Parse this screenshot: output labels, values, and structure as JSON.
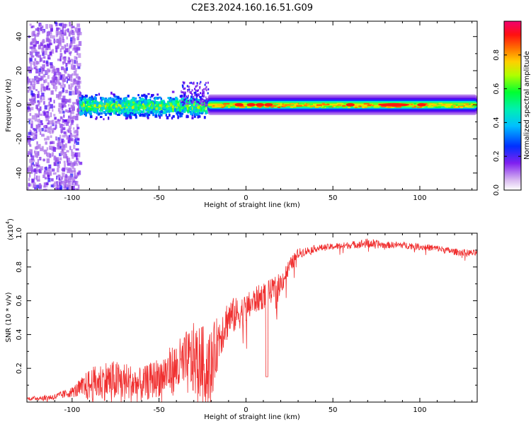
{
  "title": "C2E3.2024.160.16.51.G09",
  "chart_data": [
    {
      "type": "heatmap",
      "xlabel": "Height of straight line (km)",
      "ylabel": "Frequency (Hz)",
      "xlim": [
        -126,
        133
      ],
      "ylim": [
        -50,
        49
      ],
      "x_ticks": [
        -100,
        -50,
        0,
        50,
        100
      ],
      "y_ticks": [
        -40,
        -20,
        0,
        20,
        40
      ],
      "colorbar": {
        "label": "Normalized spectral amplitude",
        "range": [
          0,
          1
        ],
        "ticks": [
          0.0,
          0.2,
          0.4,
          0.6,
          0.8
        ],
        "colormap": [
          "#d8b8f0",
          "#a060e8",
          "#6000f0",
          "#0020ff",
          "#00b0ff",
          "#00f0c0",
          "#00ff40",
          "#c0ff00",
          "#ffd000",
          "#ff7000",
          "#ff1010",
          "#f00070"
        ]
      },
      "structure": {
        "band_center_hz": 0,
        "scatter_region_x": [
          -126,
          -96
        ],
        "transition_region_x": [
          -96,
          -22
        ],
        "steady_band_x": [
          -22,
          133
        ],
        "hotspots_x": [
          -4,
          3,
          8,
          13,
          60,
          85,
          101
        ]
      }
    },
    {
      "type": "line",
      "xlabel": "Height of straight line (km)",
      "ylabel": "SNR (10 * v/v)",
      "yscale_label": "(x10",
      "yscale_exp": "4",
      "yscale_close": ")",
      "xlim": [
        -126,
        133
      ],
      "ylim": [
        0,
        1.0
      ],
      "x_ticks": [
        -100,
        -50,
        0,
        50,
        100
      ],
      "y_ticks": [
        0.2,
        0.4,
        0.6,
        0.8,
        1.0
      ],
      "color": "#f03030",
      "series": [
        {
          "x": [
            -126,
            -110,
            -100,
            -95,
            -90,
            -80,
            -70,
            -60,
            -50,
            -40,
            -30,
            -20,
            -15,
            -10,
            -5,
            0,
            5,
            10,
            15,
            20,
            25,
            30,
            40,
            50,
            60,
            70,
            80,
            90,
            100,
            110,
            120,
            133
          ],
          "y": [
            0.02,
            0.03,
            0.06,
            0.08,
            0.1,
            0.13,
            0.12,
            0.1,
            0.15,
            0.2,
            0.25,
            0.22,
            0.4,
            0.5,
            0.52,
            0.55,
            0.6,
            0.63,
            0.66,
            0.7,
            0.8,
            0.88,
            0.91,
            0.92,
            0.93,
            0.94,
            0.93,
            0.93,
            0.92,
            0.91,
            0.89,
            0.88
          ],
          "noise": [
            0.01,
            0.02,
            0.03,
            0.06,
            0.1,
            0.12,
            0.12,
            0.1,
            0.12,
            0.16,
            0.22,
            0.22,
            0.14,
            0.12,
            0.1,
            0.09,
            0.08,
            0.08,
            0.07,
            0.07,
            0.05,
            0.03,
            0.02,
            0.02,
            0.02,
            0.03,
            0.02,
            0.02,
            0.02,
            0.02,
            0.02,
            0.02
          ]
        }
      ]
    }
  ]
}
